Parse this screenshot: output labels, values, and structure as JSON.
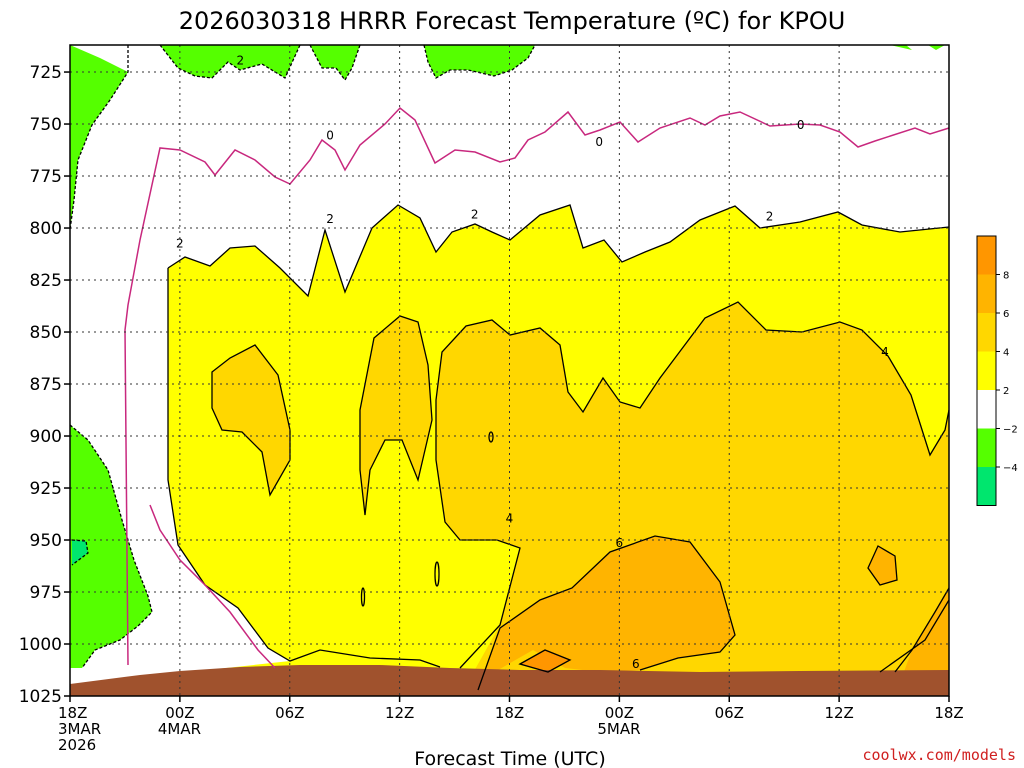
{
  "title": "2026030318 HRRR Forecast Temperature (ºC) for KPOU",
  "credit": "coolwx.com/models",
  "colors": {
    "lt_minus4": "#00e66e",
    "m4_m2": "#55ff00",
    "m2_2": "#ffffff",
    "c2_4": "#ffff00",
    "c4_6": "#ffd700",
    "c6_8": "#ffb400",
    "c8_10": "#ff9600",
    "ground": "#a0522d",
    "zero_line": "#c8287e"
  },
  "chart_data": {
    "type": "heatmap",
    "xlabel": "Forecast Time (UTC)",
    "ylabel": "",
    "x_range_hours": [
      0,
      48
    ],
    "y_range_hpa": [
      1025,
      712
    ],
    "x_ticks": [
      {
        "hour": 0,
        "lines": [
          "18Z",
          "3MAR",
          "2026"
        ]
      },
      {
        "hour": 6,
        "lines": [
          "00Z",
          "4MAR"
        ]
      },
      {
        "hour": 12,
        "lines": [
          "06Z"
        ]
      },
      {
        "hour": 18,
        "lines": [
          "12Z"
        ]
      },
      {
        "hour": 24,
        "lines": [
          "18Z"
        ]
      },
      {
        "hour": 30,
        "lines": [
          "00Z",
          "5MAR"
        ]
      },
      {
        "hour": 36,
        "lines": [
          "06Z"
        ]
      },
      {
        "hour": 42,
        "lines": [
          "12Z"
        ]
      },
      {
        "hour": 48,
        "lines": [
          "18Z"
        ]
      }
    ],
    "y_ticks": [
      725,
      750,
      775,
      800,
      825,
      850,
      875,
      900,
      925,
      950,
      975,
      1000,
      1025
    ],
    "grid": true,
    "colorbar": {
      "ticks": [
        "8",
        "6",
        "4",
        "2",
        "−2",
        "−4"
      ],
      "bins": [
        "8 to 10",
        "6 to 8",
        "4 to 6",
        "2 to 4",
        "−2 to 2",
        "−4 to −2",
        "below −4"
      ]
    },
    "contour_labels": [
      {
        "text": "2",
        "hour": 9.3,
        "hpa": 721
      },
      {
        "text": "0",
        "hour": 14.2,
        "hpa": 757
      },
      {
        "text": "0",
        "hour": 28.9,
        "hpa": 760
      },
      {
        "text": "0",
        "hour": 39.9,
        "hpa": 752
      },
      {
        "text": "2",
        "hour": 6.0,
        "hpa": 809
      },
      {
        "text": "2",
        "hour": 14.2,
        "hpa": 797
      },
      {
        "text": "2",
        "hour": 22.1,
        "hpa": 795
      },
      {
        "text": "2",
        "hour": 38.2,
        "hpa": 796
      },
      {
        "text": "4",
        "hour": 44.5,
        "hpa": 861
      },
      {
        "text": "4",
        "hour": 24.0,
        "hpa": 941
      },
      {
        "text": "6",
        "hour": 30.0,
        "hpa": 953
      },
      {
        "text": "6",
        "hour": 30.9,
        "hpa": 1011
      }
    ]
  }
}
